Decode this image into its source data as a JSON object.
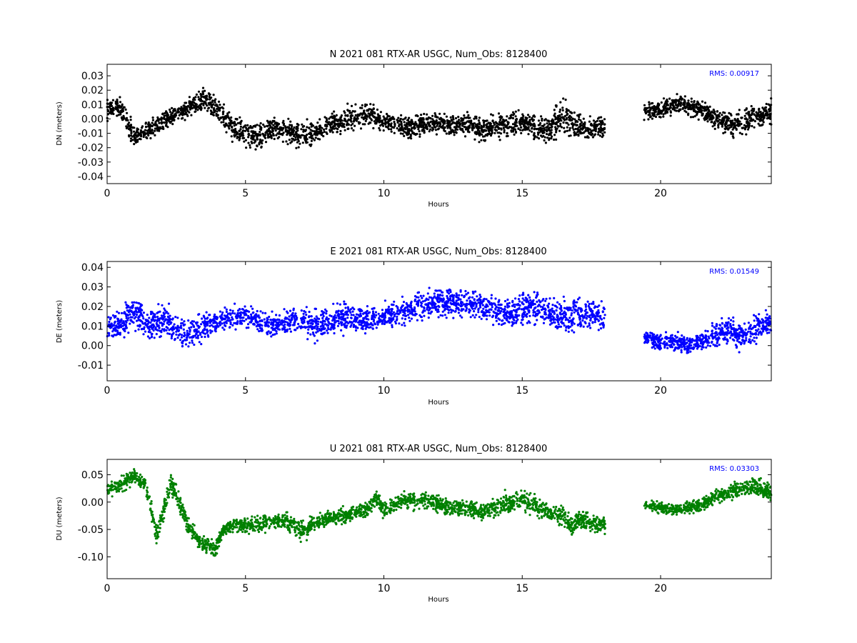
{
  "chart_data": [
    {
      "type": "scatter",
      "title": "N 2021 081 RTX-AR  USGC, Num_Obs: 8128400",
      "xlabel": "Hours",
      "ylabel": "DN (meters)",
      "xlim": [
        0,
        24
      ],
      "ylim": [
        -0.045,
        0.038
      ],
      "xticks": [
        "0",
        "5",
        "10",
        "15",
        "20"
      ],
      "yticks": [
        "0.03",
        "0.02",
        "0.01",
        "0.00",
        "-0.01",
        "-0.02",
        "-0.03",
        "-0.04"
      ],
      "rms_text": "RMS:  0.00917",
      "color": "#000000",
      "rms_color": "#0000ff",
      "gap": [
        18.0,
        19.4
      ],
      "series": [
        {
          "x": [
            0,
            0.5,
            1.0,
            1.5,
            2.0,
            2.5,
            3.0,
            3.5,
            4.0,
            4.5,
            5.0,
            5.5,
            6.0,
            6.5,
            7.0,
            7.5,
            8.0,
            8.5,
            9.0,
            9.5,
            10.0,
            10.5,
            11.0,
            11.5,
            12.0,
            12.5,
            13.0,
            13.5,
            14.0,
            14.5,
            15.0,
            15.5,
            16.0,
            16.5,
            17.0,
            17.5,
            18.0,
            19.4,
            20.0,
            20.5,
            21.0,
            21.5,
            22.0,
            22.5,
            23.0,
            23.5,
            24.0
          ],
          "y": [
            0.006,
            0.008,
            -0.012,
            -0.008,
            -0.002,
            0.004,
            0.008,
            0.014,
            0.006,
            -0.004,
            -0.01,
            -0.012,
            -0.006,
            -0.008,
            -0.012,
            -0.01,
            -0.004,
            -0.002,
            0.002,
            0.004,
            -0.002,
            -0.004,
            -0.006,
            -0.004,
            -0.002,
            -0.004,
            -0.004,
            -0.008,
            -0.006,
            -0.004,
            -0.002,
            -0.006,
            -0.006,
            0.002,
            -0.006,
            -0.006,
            -0.006,
            0.006,
            0.006,
            0.01,
            0.008,
            0.006,
            0.0,
            -0.004,
            -0.002,
            0.002,
            0.004
          ],
          "spread": [
            0.01,
            0.012,
            0.01,
            0.01,
            0.009,
            0.008,
            0.01,
            0.01,
            0.012,
            0.012,
            0.014,
            0.014,
            0.012,
            0.012,
            0.012,
            0.012,
            0.012,
            0.011,
            0.012,
            0.012,
            0.01,
            0.01,
            0.01,
            0.01,
            0.01,
            0.01,
            0.01,
            0.011,
            0.011,
            0.011,
            0.011,
            0.012,
            0.014,
            0.016,
            0.012,
            0.01,
            0.01,
            0.008,
            0.008,
            0.009,
            0.009,
            0.009,
            0.01,
            0.011,
            0.012,
            0.012,
            0.012
          ]
        }
      ]
    },
    {
      "type": "scatter",
      "title": "E 2021 081 RTX-AR  USGC, Num_Obs: 8128400",
      "xlabel": "Hours",
      "ylabel": "DE (meters)",
      "xlim": [
        0,
        24
      ],
      "ylim": [
        -0.018,
        0.043
      ],
      "xticks": [
        "0",
        "5",
        "10",
        "15",
        "20"
      ],
      "yticks": [
        "0.04",
        "0.03",
        "0.02",
        "0.01",
        "0.00",
        "-0.01"
      ],
      "rms_text": "RMS:  0.01549",
      "color": "#0000ff",
      "rms_color": "#0000ff",
      "gap": [
        18.0,
        19.4
      ],
      "series": [
        {
          "x": [
            0,
            0.5,
            1.0,
            1.5,
            2.0,
            2.5,
            3.0,
            3.5,
            4.0,
            4.5,
            5.0,
            5.5,
            6.0,
            6.5,
            7.0,
            7.5,
            8.0,
            8.5,
            9.0,
            9.5,
            10.0,
            10.5,
            11.0,
            11.5,
            12.0,
            12.5,
            13.0,
            13.5,
            14.0,
            14.5,
            15.0,
            15.5,
            16.0,
            16.5,
            17.0,
            17.5,
            18.0,
            19.4,
            20.0,
            20.5,
            21.0,
            21.5,
            22.0,
            22.5,
            23.0,
            23.5,
            24.0
          ],
          "y": [
            0.008,
            0.012,
            0.018,
            0.01,
            0.014,
            0.008,
            0.006,
            0.01,
            0.012,
            0.014,
            0.016,
            0.012,
            0.01,
            0.012,
            0.014,
            0.01,
            0.012,
            0.014,
            0.014,
            0.012,
            0.016,
            0.016,
            0.018,
            0.02,
            0.022,
            0.022,
            0.022,
            0.02,
            0.018,
            0.016,
            0.018,
            0.02,
            0.016,
            0.014,
            0.016,
            0.016,
            0.016,
            0.004,
            0.002,
            0.002,
            0.0,
            0.002,
            0.006,
            0.008,
            0.004,
            0.01,
            0.012
          ],
          "spread": [
            0.01,
            0.01,
            0.012,
            0.01,
            0.012,
            0.01,
            0.01,
            0.01,
            0.008,
            0.008,
            0.008,
            0.008,
            0.008,
            0.009,
            0.01,
            0.01,
            0.01,
            0.01,
            0.009,
            0.009,
            0.009,
            0.009,
            0.01,
            0.01,
            0.01,
            0.01,
            0.01,
            0.01,
            0.01,
            0.01,
            0.011,
            0.012,
            0.01,
            0.012,
            0.01,
            0.01,
            0.01,
            0.006,
            0.006,
            0.006,
            0.006,
            0.006,
            0.008,
            0.01,
            0.01,
            0.01,
            0.01
          ]
        }
      ]
    },
    {
      "type": "scatter",
      "title": "U 2021 081 RTX-AR  USGC, Num_Obs: 8128400",
      "xlabel": "Hours",
      "ylabel": "DU (meters)",
      "xlim": [
        0,
        24
      ],
      "ylim": [
        -0.14,
        0.078
      ],
      "xticks": [
        "0",
        "5",
        "10",
        "15",
        "20"
      ],
      "yticks": [
        "0.05",
        "0.00",
        "-0.05",
        "-0.10"
      ],
      "rms_text": "RMS:  0.03303",
      "color": "#008000",
      "rms_color": "#0000ff",
      "gap": [
        18.0,
        19.4
      ],
      "series": [
        {
          "x": [
            0,
            0.5,
            1.0,
            1.4,
            1.8,
            2.0,
            2.3,
            2.6,
            3.0,
            3.3,
            3.6,
            3.9,
            4.2,
            4.6,
            5.0,
            5.5,
            6.0,
            6.5,
            7.0,
            7.5,
            8.0,
            8.5,
            9.0,
            9.5,
            9.7,
            10.0,
            10.5,
            11.0,
            11.5,
            12.0,
            12.5,
            13.0,
            13.5,
            14.0,
            14.5,
            15.0,
            15.5,
            16.0,
            16.5,
            16.8,
            17.0,
            17.5,
            18.0,
            19.4,
            20.0,
            20.5,
            21.0,
            21.5,
            22.0,
            22.5,
            23.0,
            23.5,
            24.0
          ],
          "y": [
            0.022,
            0.032,
            0.048,
            0.03,
            -0.06,
            -0.02,
            0.035,
            0.0,
            -0.05,
            -0.07,
            -0.08,
            -0.085,
            -0.05,
            -0.04,
            -0.045,
            -0.04,
            -0.035,
            -0.035,
            -0.055,
            -0.04,
            -0.03,
            -0.025,
            -0.02,
            -0.01,
            0.01,
            -0.015,
            -0.002,
            0.004,
            0.002,
            -0.005,
            -0.01,
            -0.01,
            -0.02,
            -0.01,
            0.0,
            0.005,
            -0.01,
            -0.02,
            -0.025,
            -0.05,
            -0.03,
            -0.04,
            -0.045,
            -0.005,
            -0.01,
            -0.015,
            -0.01,
            -0.005,
            0.01,
            0.02,
            0.025,
            0.03,
            0.015
          ],
          "spread": [
            0.018,
            0.018,
            0.018,
            0.018,
            0.03,
            0.025,
            0.025,
            0.025,
            0.02,
            0.02,
            0.022,
            0.022,
            0.018,
            0.018,
            0.02,
            0.02,
            0.02,
            0.024,
            0.024,
            0.024,
            0.02,
            0.02,
            0.02,
            0.02,
            0.02,
            0.022,
            0.022,
            0.022,
            0.022,
            0.022,
            0.02,
            0.02,
            0.02,
            0.024,
            0.03,
            0.03,
            0.026,
            0.022,
            0.024,
            0.026,
            0.022,
            0.022,
            0.022,
            0.014,
            0.014,
            0.014,
            0.014,
            0.016,
            0.018,
            0.02,
            0.022,
            0.022,
            0.02
          ]
        }
      ]
    }
  ]
}
